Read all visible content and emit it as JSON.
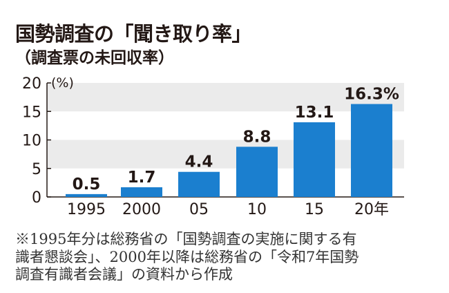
{
  "title": "国勢調査の「聞き取り率」",
  "subtitle": "（調査票の未回収率）",
  "chart_data": {
    "type": "bar",
    "ylabel": "(%)",
    "ylim": [
      0,
      20
    ],
    "yticks": [
      "0",
      "5",
      "10",
      "15",
      "20"
    ],
    "categories": [
      "1995",
      "2000",
      "05",
      "10",
      "15",
      "20年"
    ],
    "values": [
      0.5,
      1.7,
      4.4,
      8.8,
      13.1,
      16.3
    ],
    "data_labels": [
      "0.5",
      "1.7",
      "4.4",
      "8.8",
      "13.1",
      "16.3%"
    ],
    "grid": "alternating bands",
    "bar_color": "#1b7fcf",
    "band_color": "#ebebeb"
  },
  "note": [
    "※1995年分は総務省の「国勢調査の実施に関する有",
    "識者懇談会」、2000年以降は総務省の「令和7年国勢",
    "調査有識者会議」の資料から作成"
  ]
}
